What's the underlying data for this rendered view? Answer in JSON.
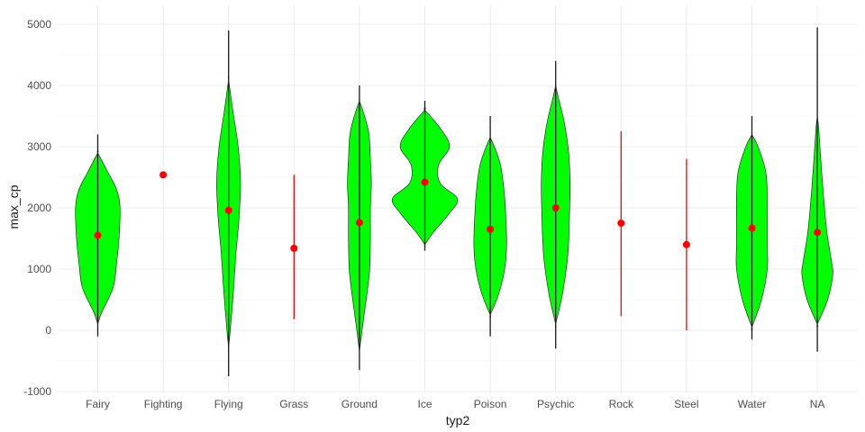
{
  "chart_data": {
    "type": "violin",
    "xlabel": "typ2",
    "ylabel": "max_cp",
    "ylim": [
      -1000,
      5100
    ],
    "yticks": [
      -1000,
      0,
      1000,
      2000,
      3000,
      4000,
      5000
    ],
    "grid": true,
    "fill_color": "#00ff00",
    "outline_color": "#1a1a1a",
    "point_color": "#ff0000",
    "categories": [
      {
        "label": "Fairy",
        "mean": 1550,
        "range_min": -100,
        "range_max": 3200,
        "has_violin": true,
        "violin": {
          "y": [
            100,
            300,
            700,
            1100,
            1500,
            2000,
            2300,
            2600,
            2900
          ],
          "w": [
            0,
            0.12,
            0.45,
            0.55,
            0.62,
            0.65,
            0.55,
            0.28,
            0
          ]
        }
      },
      {
        "label": "Fighting",
        "mean": 2540,
        "range_min": 2540,
        "range_max": 2540,
        "has_violin": false
      },
      {
        "label": "Flying",
        "mean": 1960,
        "range_min": -750,
        "range_max": 4900,
        "has_violin": true,
        "violin": {
          "y": [
            -300,
            200,
            700,
            1300,
            1800,
            2400,
            3000,
            3600,
            4100
          ],
          "w": [
            0,
            0.08,
            0.15,
            0.22,
            0.3,
            0.35,
            0.28,
            0.12,
            0
          ]
        }
      },
      {
        "label": "Grass",
        "mean": 1340,
        "range_min": 180,
        "range_max": 2540,
        "has_violin": false
      },
      {
        "label": "Ground",
        "mean": 1760,
        "range_min": -650,
        "range_max": 4000,
        "has_violin": true,
        "violin": {
          "y": [
            -350,
            100,
            600,
            1000,
            1500,
            2000,
            2400,
            2800,
            3200,
            3500,
            3750
          ],
          "w": [
            0,
            0.1,
            0.22,
            0.3,
            0.32,
            0.32,
            0.35,
            0.32,
            0.28,
            0.15,
            0
          ]
        }
      },
      {
        "label": "Ice",
        "mean": 2420,
        "range_min": 1300,
        "range_max": 3750,
        "has_violin": true,
        "violin": {
          "y": [
            1400,
            1600,
            1900,
            2150,
            2400,
            2700,
            3000,
            3300,
            3600
          ],
          "w": [
            0,
            0.25,
            0.7,
            0.95,
            0.45,
            0.4,
            0.72,
            0.45,
            0
          ]
        }
      },
      {
        "label": "Poison",
        "mean": 1650,
        "range_min": -100,
        "range_max": 3500,
        "has_violin": true,
        "violin": {
          "y": [
            250,
            600,
            1000,
            1400,
            1900,
            2300,
            2700,
            3000,
            3150
          ],
          "w": [
            0,
            0.25,
            0.42,
            0.48,
            0.45,
            0.4,
            0.3,
            0.12,
            0
          ]
        }
      },
      {
        "label": "Psychic",
        "mean": 2000,
        "range_min": -300,
        "range_max": 4400,
        "has_violin": true,
        "violin": {
          "y": [
            100,
            600,
            1200,
            1800,
            2400,
            2900,
            3400,
            3800,
            4000
          ],
          "w": [
            0,
            0.2,
            0.35,
            0.4,
            0.42,
            0.38,
            0.25,
            0.08,
            0
          ]
        }
      },
      {
        "label": "Rock",
        "mean": 1750,
        "range_min": 230,
        "range_max": 3250,
        "has_violin": false
      },
      {
        "label": "Steel",
        "mean": 1400,
        "range_min": 0,
        "range_max": 2800,
        "has_violin": false
      },
      {
        "label": "Water",
        "mean": 1670,
        "range_min": -150,
        "range_max": 3500,
        "has_violin": true,
        "violin": {
          "y": [
            50,
            500,
            1000,
            1400,
            1800,
            2200,
            2600,
            3000,
            3200
          ],
          "w": [
            0,
            0.28,
            0.45,
            0.45,
            0.45,
            0.45,
            0.4,
            0.18,
            0
          ]
        }
      },
      {
        "label": "NA",
        "mean": 1600,
        "range_min": -350,
        "range_max": 4950,
        "has_violin": true,
        "violin": {
          "y": [
            100,
            500,
            900,
            1100,
            1600,
            2200,
            2800,
            3300,
            3500
          ],
          "w": [
            0,
            0.3,
            0.45,
            0.42,
            0.28,
            0.18,
            0.1,
            0.04,
            0
          ]
        }
      }
    ]
  }
}
